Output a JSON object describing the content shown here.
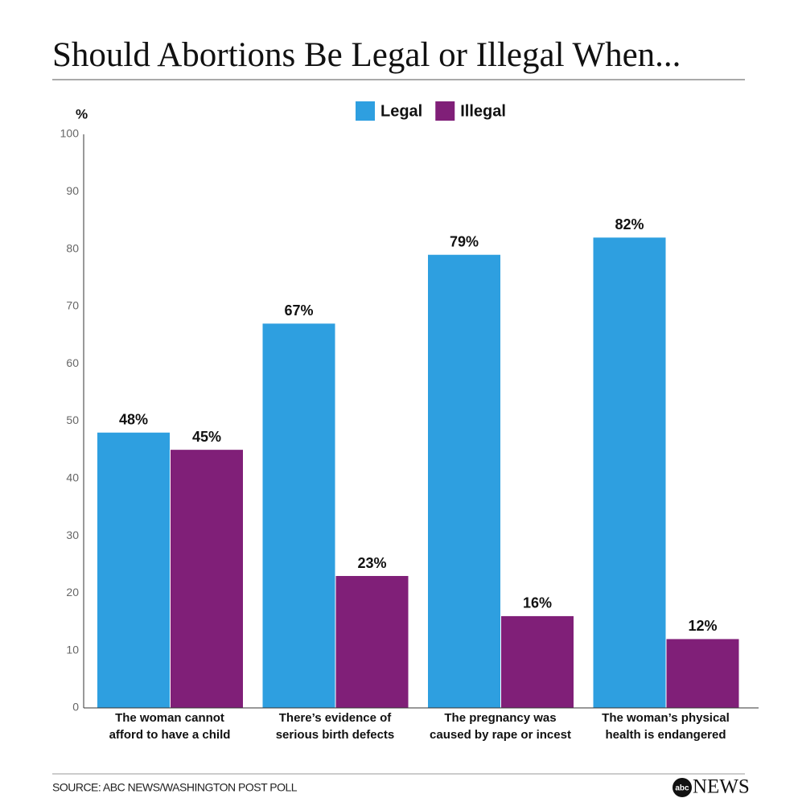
{
  "chart_data": {
    "type": "bar",
    "title": "Should Abortions Be Legal or Illegal When...",
    "y_unit": "%",
    "categories": [
      [
        "The woman cannot",
        "afford to have a child"
      ],
      [
        "There’s evidence of",
        "serious birth defects"
      ],
      [
        "The pregnancy was",
        "caused by rape or incest"
      ],
      [
        "The woman’s physical",
        "health is endangered"
      ]
    ],
    "series": [
      {
        "name": "Legal",
        "color": "#2e9fe0",
        "values": [
          48,
          67,
          79,
          82
        ],
        "value_labels": [
          "48%",
          "67%",
          "79%",
          "82%"
        ]
      },
      {
        "name": "Illegal",
        "color": "#801f78",
        "values": [
          45,
          23,
          16,
          12
        ],
        "value_labels": [
          "45%",
          "23%",
          "16%",
          "12%"
        ]
      }
    ],
    "ylim": [
      0,
      100
    ],
    "yticks": [
      0,
      10,
      20,
      30,
      40,
      50,
      60,
      70,
      80,
      90,
      100
    ],
    "grid": false,
    "source": "SOURCE: ABC NEWS/WASHINGTON POST POLL",
    "logo": [
      "abc",
      "NEWS"
    ]
  }
}
